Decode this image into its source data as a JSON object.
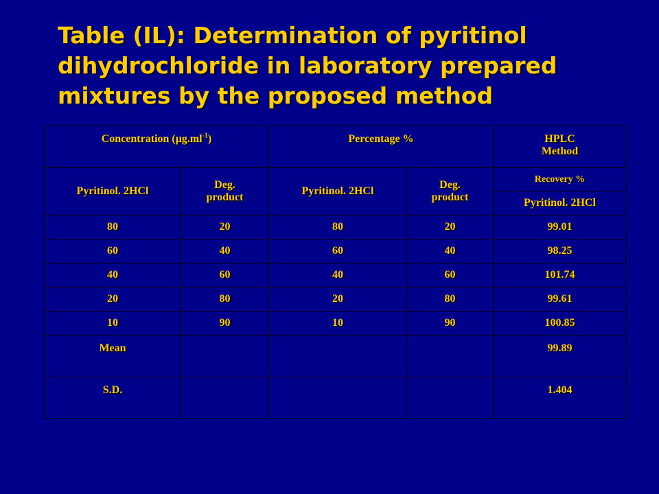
{
  "title": {
    "line1": "Table (IL): Determination of pyritinol",
    "line2": "dihydrochloride in laboratory prepared",
    "line3": "mixtures by the proposed method"
  },
  "table": {
    "header": {
      "concentration_label": "Concentration (μg.ml",
      "concentration_sup": "-1",
      "concentration_close": ")",
      "percentage_label": "Percentage %",
      "hplc_line1": "HPLC",
      "hplc_line2": "Method",
      "col1": "Pyritinol. 2HCl",
      "col2_line1": "Deg.",
      "col2_line2": "product",
      "col3": "Pyritinol. 2HCl",
      "col4_line1": "Deg.",
      "col4_line2": "product",
      "recovery": "Recovery %",
      "col5": "Pyritinol. 2HCl"
    },
    "rows": [
      [
        "80",
        "20",
        "80",
        "20",
        "99.01"
      ],
      [
        "60",
        "40",
        "60",
        "40",
        "98.25"
      ],
      [
        "40",
        "60",
        "40",
        "60",
        "101.74"
      ],
      [
        "20",
        "80",
        "20",
        "80",
        "99.61"
      ],
      [
        "10",
        "90",
        "10",
        "90",
        "100.85"
      ]
    ],
    "footer": [
      {
        "label": "Mean",
        "value": "99.89"
      },
      {
        "label": "S.D.",
        "value": "1.404"
      }
    ]
  },
  "colors": {
    "background": "#00008b",
    "text": "#ffcc00",
    "grid": "#000000"
  }
}
